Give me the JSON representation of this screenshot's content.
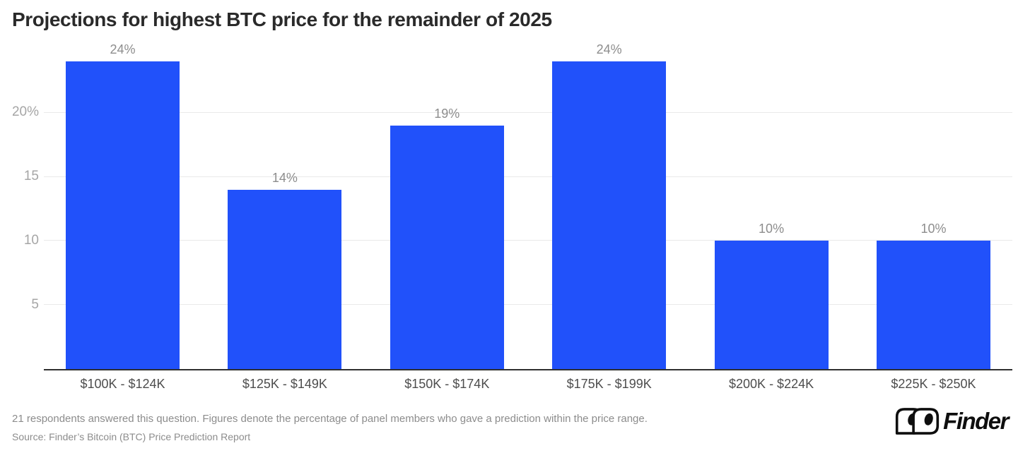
{
  "page": {
    "title": "Projections for highest BTC price for the remainder of 2025"
  },
  "chart_data": {
    "type": "bar",
    "title": "Projections for highest BTC price for the remainder of 2025",
    "categories": [
      "$100K - $124K",
      "$125K - $149K",
      "$150K - $174K",
      "$175K - $199K",
      "$200K - $224K",
      "$225K - $250K"
    ],
    "values": [
      24,
      14,
      19,
      24,
      10,
      10
    ],
    "value_labels": [
      "24%",
      "14%",
      "19%",
      "24%",
      "10%",
      "10%"
    ],
    "xlabel": "",
    "ylabel": "",
    "ylim": [
      0,
      25.5
    ],
    "yticks": [
      {
        "value": 5,
        "label": "5"
      },
      {
        "value": 10,
        "label": "10"
      },
      {
        "value": 15,
        "label": "15"
      },
      {
        "value": 20,
        "label": "20%"
      }
    ],
    "grid": true,
    "legend_position": "none"
  },
  "footer": {
    "note": "21 respondents answered this question. Figures denote the percentage of panel members who gave a prediction within the price range.",
    "source": "Source: Finder’s Bitcoin (BTC) Price Prediction Report"
  },
  "logo": {
    "brand": "Finder",
    "icon": "finder-eyes-icon"
  },
  "colors": {
    "bar": "#2151fa",
    "title": "#2a2a2a",
    "y_tick_label": "#a6a6a6",
    "value_label": "#8d8d8d",
    "x_label": "#4d4d4d",
    "gridline": "#e9e9e9",
    "axis_line": "#2f2f2f",
    "footer_text": "#8c8c8c",
    "logo": "#0e0e0e"
  }
}
